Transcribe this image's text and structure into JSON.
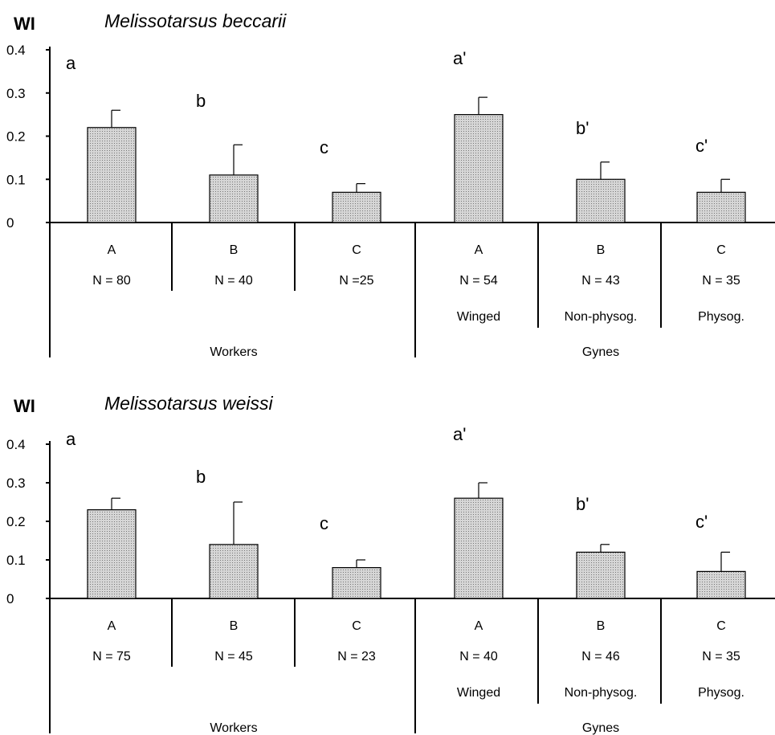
{
  "chart_data": [
    {
      "type": "bar",
      "title": "Melissotarsus beccarii",
      "ylabel": "WI",
      "ylim": [
        0,
        0.4
      ],
      "yticks": [
        "0",
        "0.1",
        "0.2",
        "0.3",
        "0.4"
      ],
      "categories": [
        "A",
        "B",
        "C",
        "A",
        "B",
        "C"
      ],
      "values": [
        0.22,
        0.11,
        0.07,
        0.25,
        0.1,
        0.07
      ],
      "errors": [
        0.04,
        0.07,
        0.02,
        0.04,
        0.04,
        0.03
      ],
      "significance": [
        "a",
        "b",
        "c",
        "a'",
        "b'",
        "c'"
      ],
      "sample_sizes": [
        "N = 80",
        "N = 40",
        "N =25",
        "N = 54",
        "N = 43",
        "N = 35"
      ],
      "subgroups": [
        "",
        "",
        "",
        "Winged",
        "Non-physog.",
        "Physog."
      ],
      "groups": [
        {
          "label": "Workers",
          "categories": [
            0,
            1,
            2
          ]
        },
        {
          "label": "Gynes",
          "categories": [
            3,
            4,
            5
          ]
        }
      ]
    },
    {
      "type": "bar",
      "title": "Melissotarsus weissi",
      "ylabel": "WI",
      "ylim": [
        0,
        0.4
      ],
      "yticks": [
        "0",
        "0.1",
        "0.2",
        "0.3",
        "0.4"
      ],
      "categories": [
        "A",
        "B",
        "C",
        "A",
        "B",
        "C"
      ],
      "values": [
        0.23,
        0.14,
        0.08,
        0.26,
        0.12,
        0.07
      ],
      "errors": [
        0.03,
        0.11,
        0.02,
        0.04,
        0.02,
        0.05
      ],
      "significance": [
        "a",
        "b",
        "c",
        "a'",
        "b'",
        "c'"
      ],
      "sample_sizes": [
        "N = 75",
        "N = 45",
        "N = 23",
        "N = 40",
        "N = 46",
        "N = 35"
      ],
      "subgroups": [
        "",
        "",
        "",
        "Winged",
        "Non-physog.",
        "Physog."
      ],
      "groups": [
        {
          "label": "Workers",
          "categories": [
            0,
            1,
            2
          ]
        },
        {
          "label": "Gynes",
          "categories": [
            3,
            4,
            5
          ]
        }
      ]
    }
  ],
  "colors": {
    "bar_fill": "#d4d4d4",
    "bar_dot": "#7a7a7a",
    "axis": "#000000"
  }
}
